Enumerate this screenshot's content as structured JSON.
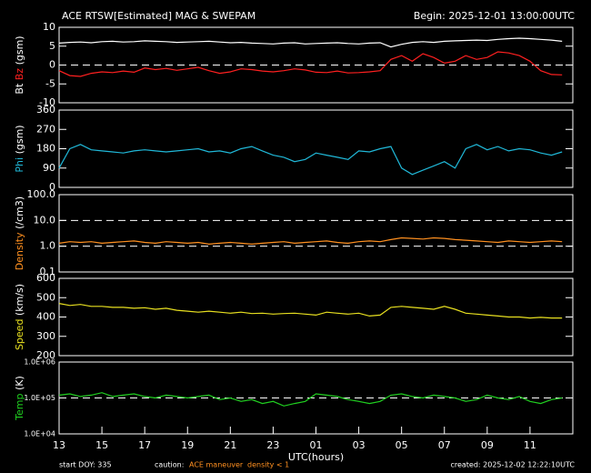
{
  "title": "ACE RTSW[Estimated] MAG & SWEPAM",
  "begin": "Begin: 2025-12-01 13:00:00UTC",
  "footer": {
    "start": "start DOY: 335",
    "caution": "caution:",
    "maneuver": "ACE maneuver",
    "density_flag": "density < 1",
    "created": "created: 2025-12-02 12:22:10UTC"
  },
  "chart_data": [
    {
      "type": "line",
      "ylabel_units": "(gsm)",
      "x": [
        0,
        0.5,
        1,
        1.5,
        2,
        2.5,
        3,
        3.5,
        4,
        4.5,
        5,
        5.5,
        6,
        6.5,
        7,
        7.5,
        8,
        8.5,
        9,
        9.5,
        10,
        10.5,
        11,
        11.5,
        12,
        12.5,
        13,
        13.5,
        14,
        14.5,
        15,
        15.5,
        16,
        16.5,
        17,
        17.5,
        18,
        18.5,
        19,
        19.5,
        20,
        20.5,
        21,
        21.5,
        22,
        22.5,
        23,
        23.5
      ],
      "xlim": [
        0,
        24
      ],
      "ylim": [
        -10,
        10
      ],
      "yticks": [
        -10,
        -5,
        0,
        5,
        10
      ],
      "hlines": [
        0
      ],
      "series": [
        {
          "name": "Bt",
          "color": "#ffffff",
          "values": [
            5.8,
            6.0,
            6.1,
            5.9,
            6.2,
            6.3,
            6.1,
            6.2,
            6.4,
            6.3,
            6.2,
            6.0,
            6.1,
            6.2,
            6.3,
            6.1,
            5.9,
            6.0,
            5.8,
            5.7,
            5.6,
            5.8,
            5.9,
            5.6,
            5.7,
            5.8,
            5.9,
            5.7,
            5.6,
            5.8,
            5.9,
            4.8,
            5.5,
            6.0,
            6.2,
            6.0,
            6.3,
            6.4,
            6.5,
            6.6,
            6.5,
            6.8,
            7.0,
            7.1,
            7.0,
            6.8,
            6.6,
            6.3
          ]
        },
        {
          "name": "Bz",
          "color": "#ff2020",
          "values": [
            -1.5,
            -2.8,
            -3.0,
            -2.2,
            -1.8,
            -2.0,
            -1.6,
            -1.9,
            -0.8,
            -1.2,
            -0.9,
            -1.4,
            -1.0,
            -0.6,
            -1.5,
            -2.2,
            -1.8,
            -1.0,
            -1.2,
            -1.6,
            -1.8,
            -1.5,
            -1.0,
            -1.3,
            -1.9,
            -2.0,
            -1.6,
            -2.1,
            -2.0,
            -1.8,
            -1.5,
            1.5,
            2.5,
            1.0,
            3.0,
            2.0,
            0.5,
            1.0,
            2.5,
            1.5,
            2.0,
            3.5,
            3.2,
            2.5,
            1.0,
            -1.5,
            -2.5,
            -2.6
          ]
        }
      ]
    },
    {
      "type": "line",
      "ylabel_units": "(gsm)",
      "x": [
        0,
        0.5,
        1,
        1.5,
        2,
        2.5,
        3,
        3.5,
        4,
        4.5,
        5,
        5.5,
        6,
        6.5,
        7,
        7.5,
        8,
        8.5,
        9,
        9.5,
        10,
        10.5,
        11,
        11.5,
        12,
        12.5,
        13,
        13.5,
        14,
        14.5,
        15,
        15.5,
        16,
        16.5,
        17,
        17.5,
        18,
        18.5,
        19,
        19.5,
        20,
        20.5,
        21,
        21.5,
        22,
        22.5,
        23,
        23.5
      ],
      "xlim": [
        0,
        24
      ],
      "ylim": [
        0,
        360
      ],
      "yticks": [
        0,
        90,
        180,
        270,
        360
      ],
      "series": [
        {
          "name": "Phi",
          "color": "#20b8d8",
          "values": [
            90,
            180,
            200,
            175,
            170,
            165,
            160,
            170,
            175,
            170,
            165,
            170,
            175,
            180,
            165,
            170,
            160,
            180,
            190,
            170,
            150,
            140,
            120,
            130,
            160,
            150,
            140,
            130,
            170,
            165,
            180,
            190,
            90,
            60,
            80,
            100,
            120,
            90,
            180,
            200,
            175,
            190,
            170,
            180,
            175,
            160,
            150,
            165
          ]
        }
      ]
    },
    {
      "type": "line",
      "ylabel_units": "(/cm3)",
      "log": true,
      "x": [
        0,
        0.5,
        1,
        1.5,
        2,
        2.5,
        3,
        3.5,
        4,
        4.5,
        5,
        5.5,
        6,
        6.5,
        7,
        7.5,
        8,
        8.5,
        9,
        9.5,
        10,
        10.5,
        11,
        11.5,
        12,
        12.5,
        13,
        13.5,
        14,
        14.5,
        15,
        15.5,
        16,
        16.5,
        17,
        17.5,
        18,
        18.5,
        19,
        19.5,
        20,
        20.5,
        21,
        21.5,
        22,
        22.5,
        23,
        23.5
      ],
      "xlim": [
        0,
        24
      ],
      "ylim": [
        0.1,
        100
      ],
      "yticks": [
        0.1,
        {
          "value": 1,
          "label": "1.0"
        },
        {
          "value": 10,
          "label": "10.0"
        },
        {
          "value": 100,
          "label": "100.0"
        }
      ],
      "hlines": [
        1,
        10
      ],
      "series": [
        {
          "name": "Density",
          "color": "#ff9020",
          "values": [
            1.3,
            1.5,
            1.4,
            1.5,
            1.3,
            1.4,
            1.5,
            1.6,
            1.4,
            1.3,
            1.5,
            1.4,
            1.3,
            1.4,
            1.2,
            1.3,
            1.4,
            1.3,
            1.2,
            1.3,
            1.4,
            1.5,
            1.3,
            1.4,
            1.5,
            1.6,
            1.4,
            1.3,
            1.5,
            1.6,
            1.5,
            1.8,
            2.1,
            2.0,
            1.9,
            2.1,
            2.0,
            1.8,
            1.7,
            1.6,
            1.5,
            1.4,
            1.6,
            1.5,
            1.4,
            1.5,
            1.6,
            1.5
          ]
        }
      ]
    },
    {
      "type": "line",
      "ylabel_units": "(km/s)",
      "x": [
        0,
        0.5,
        1,
        1.5,
        2,
        2.5,
        3,
        3.5,
        4,
        4.5,
        5,
        5.5,
        6,
        6.5,
        7,
        7.5,
        8,
        8.5,
        9,
        9.5,
        10,
        10.5,
        11,
        11.5,
        12,
        12.5,
        13,
        13.5,
        14,
        14.5,
        15,
        15.5,
        16,
        16.5,
        17,
        17.5,
        18,
        18.5,
        19,
        19.5,
        20,
        20.5,
        21,
        21.5,
        22,
        22.5,
        23,
        23.5
      ],
      "xlim": [
        0,
        24
      ],
      "ylim": [
        200,
        600
      ],
      "yticks": [
        200,
        300,
        400,
        500,
        600
      ],
      "series": [
        {
          "name": "Speed",
          "color": "#e8e020",
          "values": [
            470,
            460,
            465,
            455,
            455,
            450,
            450,
            445,
            448,
            440,
            445,
            435,
            430,
            425,
            430,
            425,
            420,
            425,
            418,
            420,
            415,
            418,
            420,
            415,
            410,
            425,
            420,
            415,
            420,
            405,
            410,
            450,
            455,
            450,
            445,
            440,
            455,
            440,
            420,
            415,
            410,
            405,
            400,
            400,
            395,
            398,
            395,
            395
          ]
        }
      ]
    },
    {
      "type": "line",
      "ylabel_units": "(K)",
      "log": true,
      "x_label": "UTC(hours)",
      "x": [
        0,
        0.5,
        1,
        1.5,
        2,
        2.5,
        3,
        3.5,
        4,
        4.5,
        5,
        5.5,
        6,
        6.5,
        7,
        7.5,
        8,
        8.5,
        9,
        9.5,
        10,
        10.5,
        11,
        11.5,
        12,
        12.5,
        13,
        13.5,
        14,
        14.5,
        15,
        15.5,
        16,
        16.5,
        17,
        17.5,
        18,
        18.5,
        19,
        19.5,
        20,
        20.5,
        21,
        21.5,
        22,
        22.5,
        23,
        23.5
      ],
      "xlim": [
        0,
        24
      ],
      "xticks": [
        {
          "value": 0,
          "label": "13"
        },
        {
          "value": 2,
          "label": "15"
        },
        {
          "value": 4,
          "label": "17"
        },
        {
          "value": 6,
          "label": "19"
        },
        {
          "value": 8,
          "label": "21"
        },
        {
          "value": 10,
          "label": "23"
        },
        {
          "value": 12,
          "label": "01"
        },
        {
          "value": 14,
          "label": "03"
        },
        {
          "value": 16,
          "label": "05"
        },
        {
          "value": 18,
          "label": "07"
        },
        {
          "value": 20,
          "label": "09"
        },
        {
          "value": 22,
          "label": "11"
        }
      ],
      "ylim": [
        10000,
        1000000
      ],
      "yticks": [
        {
          "value": 10000,
          "label": "1.0E+04"
        },
        {
          "value": 100000,
          "label": "1.0E+05"
        },
        {
          "value": 1000000,
          "label": "1.0E+06"
        }
      ],
      "hlines": [
        100000
      ],
      "series": [
        {
          "name": "Temp",
          "color": "#20d020",
          "values": [
            120000,
            130000,
            110000,
            120000,
            140000,
            110000,
            120000,
            130000,
            110000,
            100000,
            120000,
            110000,
            100000,
            110000,
            120000,
            90000,
            100000,
            80000,
            90000,
            70000,
            80000,
            60000,
            70000,
            80000,
            130000,
            120000,
            110000,
            90000,
            80000,
            70000,
            80000,
            120000,
            130000,
            110000,
            100000,
            120000,
            110000,
            100000,
            80000,
            90000,
            120000,
            100000,
            90000,
            110000,
            80000,
            70000,
            90000,
            100000
          ]
        }
      ]
    }
  ]
}
